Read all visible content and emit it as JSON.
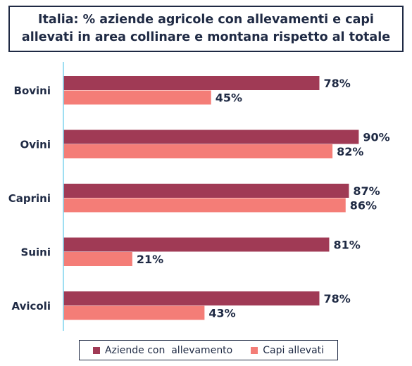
{
  "chart_data": {
    "type": "bar",
    "orientation": "horizontal",
    "title": "Italia: % aziende agricole con allevamenti e capi\nallevati in area collinare e montana rispetto al totale",
    "categories": [
      "Bovini",
      "Ovini",
      "Caprini",
      "Suini",
      "Avicoli"
    ],
    "series": [
      {
        "name": "Aziende con  allevamento",
        "values": [
          78,
          90,
          87,
          81,
          78
        ],
        "labels": [
          "78%",
          "90%",
          "87%",
          "81%",
          "78%"
        ],
        "color": "#a03a55"
      },
      {
        "name": "Capi allevati",
        "values": [
          45,
          82,
          86,
          21,
          43
        ],
        "labels": [
          "45%",
          "82%",
          "86%",
          "21%",
          "43%"
        ],
        "color": "#f47d77"
      }
    ],
    "xlim": [
      0,
      100
    ],
    "grid": false,
    "legend_position": "bottom"
  },
  "colors": {
    "text": "#1f2a44",
    "axis": "#7fd3ee"
  }
}
